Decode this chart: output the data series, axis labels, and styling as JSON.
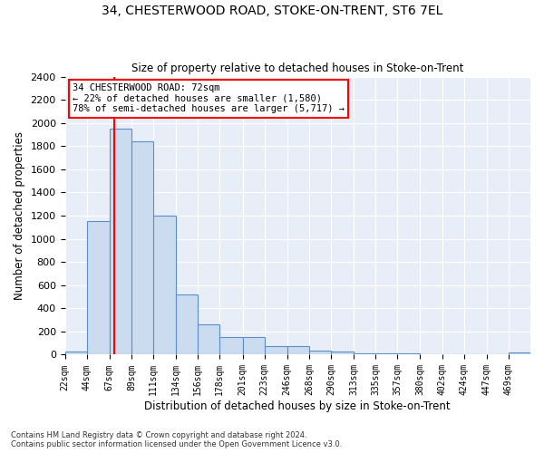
{
  "title1": "34, CHESTERWOOD ROAD, STOKE-ON-TRENT, ST6 7EL",
  "title2": "Size of property relative to detached houses in Stoke-on-Trent",
  "xlabel": "Distribution of detached houses by size in Stoke-on-Trent",
  "ylabel": "Number of detached properties",
  "footnote1": "Contains HM Land Registry data © Crown copyright and database right 2024.",
  "footnote2": "Contains public sector information licensed under the Open Government Licence v3.0.",
  "bar_edges": [
    22,
    44,
    67,
    89,
    111,
    134,
    156,
    178,
    201,
    223,
    246,
    268,
    290,
    313,
    335,
    357,
    380,
    402,
    424,
    447,
    469
  ],
  "bar_heights": [
    30,
    1150,
    1950,
    1840,
    1200,
    520,
    260,
    150,
    150,
    75,
    75,
    35,
    30,
    10,
    10,
    10,
    0,
    0,
    0,
    0,
    20
  ],
  "bar_color": "#ccdcf0",
  "bar_edge_color": "#5b8fc9",
  "red_line_x": 72,
  "ylim": [
    0,
    2400
  ],
  "yticks": [
    0,
    200,
    400,
    600,
    800,
    1000,
    1200,
    1400,
    1600,
    1800,
    2000,
    2200,
    2400
  ],
  "annotation_text": "34 CHESTERWOOD ROAD: 72sqm\n← 22% of detached houses are smaller (1,580)\n78% of semi-detached houses are larger (5,717) →",
  "background_color": "#e8eef8"
}
